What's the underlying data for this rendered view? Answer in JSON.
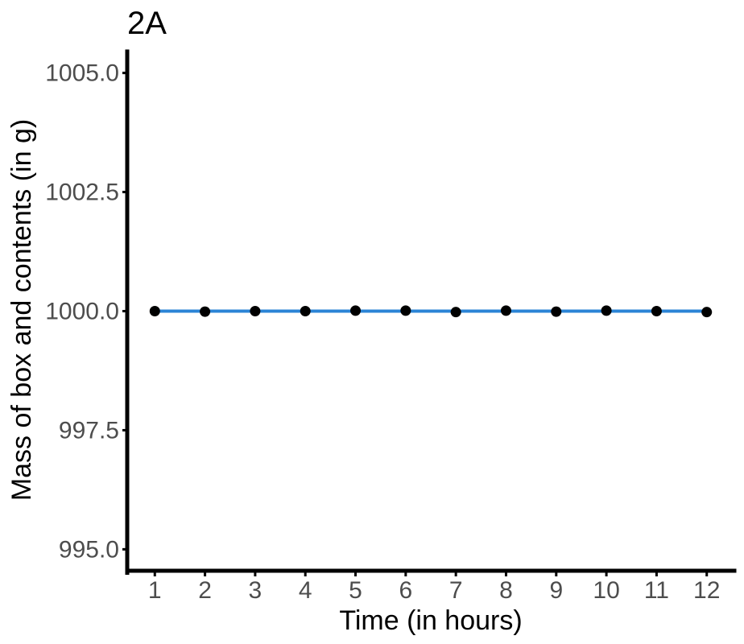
{
  "chart_data": {
    "type": "line",
    "title": "2A",
    "xlabel": "Time (in hours)",
    "ylabel": "Mass of box and contents (in g)",
    "x": [
      1,
      2,
      3,
      4,
      5,
      6,
      7,
      8,
      9,
      10,
      11,
      12
    ],
    "x_ticks": [
      "1",
      "2",
      "3",
      "4",
      "5",
      "6",
      "7",
      "8",
      "9",
      "10",
      "11",
      "12"
    ],
    "y_ticks": [
      995.0,
      997.5,
      1000.0,
      1002.5,
      1005.0
    ],
    "y_tick_labels": [
      "995.0",
      "997.5",
      "1000.0",
      "1002.5",
      "1005.0"
    ],
    "xlim": [
      0.45,
      12.55
    ],
    "ylim": [
      994.55,
      1005.45
    ],
    "points": [
      1000.0,
      999.99,
      1000.0,
      1000.0,
      1000.01,
      1000.01,
      999.98,
      1000.01,
      999.99,
      1000.01,
      1000.0,
      999.98
    ],
    "fit_line": {
      "x": [
        1,
        12
      ],
      "y": [
        1000.0,
        1000.0
      ]
    },
    "grid": false,
    "legend": "none",
    "colors": {
      "line": "#2b84d6",
      "points": "#000000",
      "axis": "#000000",
      "tick_text": "#4d4d4d"
    }
  }
}
